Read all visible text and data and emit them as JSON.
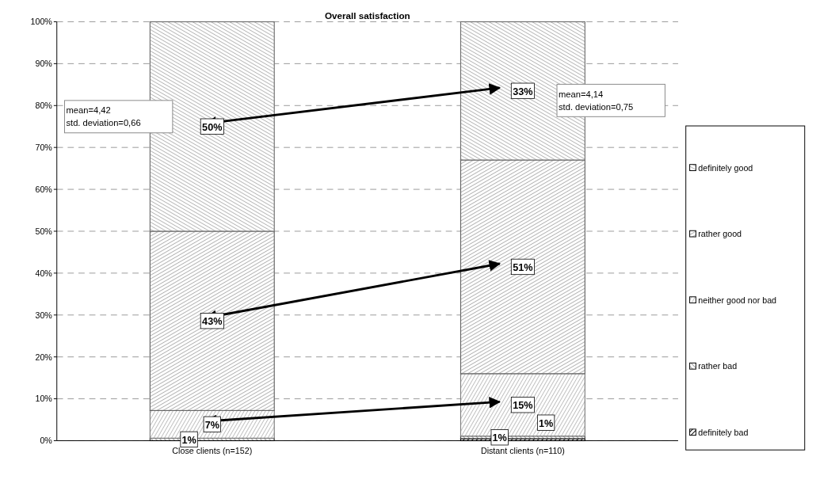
{
  "chart_data": {
    "type": "bar",
    "stacked": true,
    "title": "Overall satisfaction",
    "categories": [
      "Close clients (n=152)",
      "Distant clients (n=110)"
    ],
    "series": [
      {
        "name": "definitely bad",
        "color": "#000000",
        "values": [
          null,
          0.5
        ],
        "value_labels": [
          null,
          "1%"
        ]
      },
      {
        "name": "rather bad",
        "color": "#404040",
        "values": [
          0.6,
          0.6
        ],
        "value_labels": [
          "1%",
          "1%"
        ]
      },
      {
        "name": "neither good nor bad",
        "color": "#808080",
        "values": [
          6.6,
          14.9
        ],
        "value_labels": [
          "7%",
          "15%"
        ]
      },
      {
        "name": "rather good",
        "color": "#666666",
        "values": [
          42.8,
          51
        ],
        "value_labels": [
          "43%",
          "51%"
        ]
      },
      {
        "name": "definitely good",
        "color": "#707070",
        "values": [
          50,
          33
        ],
        "value_labels": [
          "50%",
          "33%"
        ]
      }
    ],
    "ylim": [
      0,
      100
    ],
    "yticks": [
      {
        "value": 0,
        "label": "0%"
      },
      {
        "value": 10,
        "label": "10%"
      },
      {
        "value": 20,
        "label": "20%"
      },
      {
        "value": 30,
        "label": "30%"
      },
      {
        "value": 40,
        "label": "40%"
      },
      {
        "value": 50,
        "label": "50%"
      },
      {
        "value": 60,
        "label": "60%"
      },
      {
        "value": 70,
        "label": "70%"
      },
      {
        "value": 80,
        "label": "80%"
      },
      {
        "value": 90,
        "label": "90%"
      },
      {
        "value": 100,
        "label": "100%"
      }
    ],
    "grid": "y",
    "legend": "right",
    "annotations": [
      "mean=4,42\nstd. deviation=0,66",
      "mean=4,14\nstd. deviation=0,75"
    ]
  }
}
